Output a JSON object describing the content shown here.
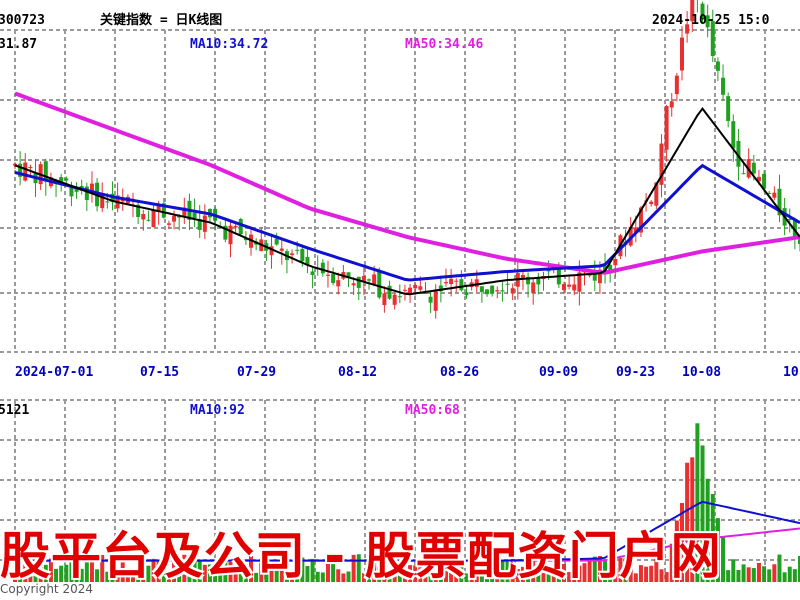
{
  "header": {
    "code": "300723",
    "title": "关键指数 = 日K线图",
    "datetime": "2024-10-25 15:0"
  },
  "price_panel": {
    "last_value": "31.87",
    "ma10_label": "MA10:34.72",
    "ma50_label": "MA50:34.46"
  },
  "volume_panel": {
    "last_value": "5121",
    "ma10_label": "MA10:92",
    "ma50_label": "MA50:68"
  },
  "watermark_banner": "股平台及公司 - 股票配资门户网",
  "copyright": "Copyright 2024",
  "colors": {
    "up": "#e83030",
    "down": "#20a020",
    "ma5": "#000000",
    "ma10": "#1010d0",
    "ma50": "#e020e0",
    "grid": "#9a9a9a",
    "date_label": "#0000c0",
    "banner": "#e00000"
  },
  "chart_data": [
    {
      "type": "line",
      "title": "关键指数 = 日K线图",
      "x": [
        "2024-07-01",
        "07-15",
        "07-29",
        "08-12",
        "08-26",
        "09-09",
        "09-23",
        "10-08",
        "10"
      ],
      "series": [
        {
          "name": "MA10",
          "values": [
            42.5,
            40.8,
            39.6,
            37.2,
            35.0,
            35.6,
            36.0,
            43.0,
            39.0
          ]
        },
        {
          "name": "MA50",
          "values": [
            48.0,
            45.5,
            43.0,
            40.0,
            38.0,
            36.5,
            35.5,
            37.0,
            38.0
          ]
        }
      ],
      "candles_trend": [
        43.0,
        40.5,
        39.0,
        36.0,
        34.0,
        35.0,
        35.5,
        47.0,
        38.0
      ],
      "grid": true
    },
    {
      "type": "bar",
      "title": "volume",
      "x": [
        "2024-07-01",
        "07-15",
        "07-29",
        "08-12",
        "08-26",
        "09-09",
        "09-23",
        "10-08",
        "10"
      ],
      "series": [
        {
          "name": "MA10",
          "values": [
            20,
            20,
            20,
            20,
            20,
            20,
            22,
            75,
            55
          ]
        },
        {
          "name": "MA50",
          "values": [
            20,
            20,
            20,
            20,
            20,
            20,
            20,
            40,
            50
          ]
        }
      ],
      "volume_peak": 160,
      "grid": true
    }
  ]
}
